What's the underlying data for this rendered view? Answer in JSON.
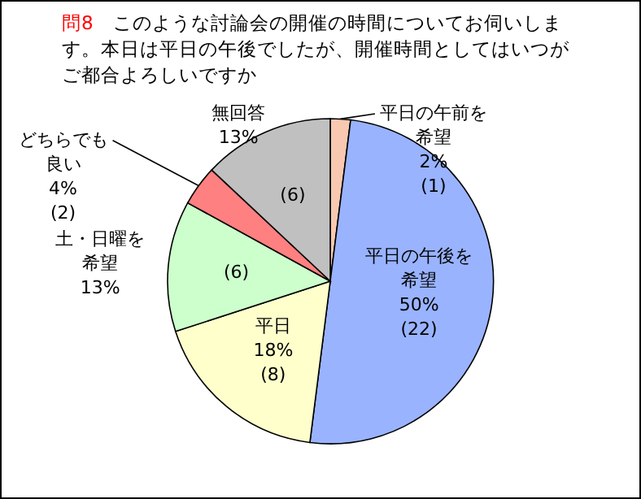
{
  "chart_data": {
    "type": "pie",
    "title": "問8　このような討論会の開催の時間についてお伺いします。本日は平日の午後でしたが、開催時間としてはいつがご都合よろしいですか",
    "categories": [
      "平日の午前を希望",
      "平日の午後を希望",
      "平日",
      "土・日曜を希望",
      "どちらでも良い",
      "無回答"
    ],
    "values": [
      2,
      50,
      18,
      13,
      4,
      13
    ],
    "value_labels": [
      "2%",
      "50%",
      "18%",
      "13%",
      "4%",
      "13%"
    ],
    "colors": [
      "#f8c8b0",
      "#99b3ff",
      "#ffffcc",
      "#ccffcc",
      "#ff8080",
      "#c0c0c0"
    ],
    "annotations": [
      {
        "text": "(1)",
        "x": "平日の午前を希望"
      },
      {
        "text": "(22)",
        "x": "平日の午後を希望"
      },
      {
        "text": "(8)",
        "x": "平日"
      },
      {
        "text": "(6)",
        "x": "土・日曜を希望"
      },
      {
        "text": "(2)",
        "x": "どちらでも良い"
      },
      {
        "text": "(6)",
        "x": "無回答"
      }
    ]
  }
}
